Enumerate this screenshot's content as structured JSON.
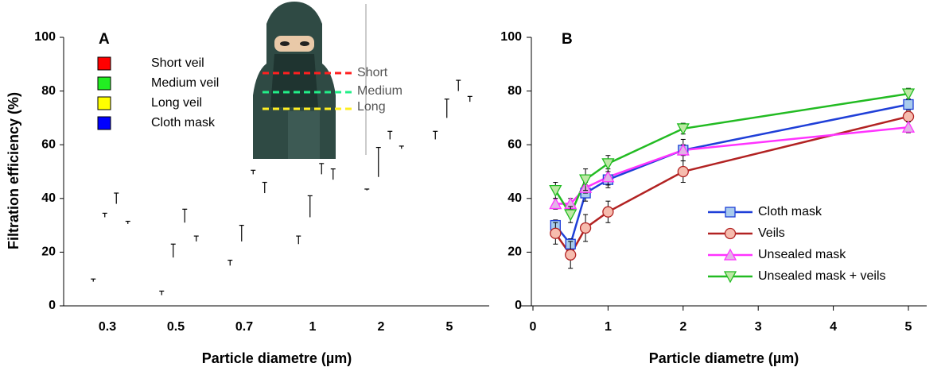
{
  "chart_data": [
    {
      "type": "bar",
      "title": "A",
      "x_label": "Particle diametre (µm)",
      "y_label": "Filtration efficiency (%)",
      "categories": [
        "0.3",
        "0.5",
        "0.7",
        "1",
        "2",
        "5"
      ],
      "series": [
        {
          "name": "Short veil",
          "color": "#ff0000",
          "values": [
            9,
            4,
            15,
            23,
            43,
            62
          ],
          "errors": [
            1,
            1.5,
            2,
            3,
            0.5,
            3
          ]
        },
        {
          "name": "Medium veil",
          "color": "#22ee22",
          "values": [
            33,
            18,
            24,
            33,
            48,
            70
          ],
          "errors": [
            1.5,
            5,
            6,
            8,
            11,
            7
          ]
        },
        {
          "name": "Long veil",
          "color": "#ffff00",
          "values": [
            38,
            31,
            49,
            49,
            62,
            80
          ],
          "errors": [
            4,
            5,
            1.5,
            4,
            3,
            4
          ]
        },
        {
          "name": "Cloth mask",
          "color": "#0000ff",
          "values": [
            30.5,
            24,
            42,
            47,
            58.5,
            76
          ],
          "errors": [
            1,
            2,
            4,
            4,
            1,
            2
          ]
        }
      ],
      "annotations": [
        "Short",
        "Medium",
        "Long"
      ],
      "ylim": [
        0,
        100
      ],
      "yticks": [
        0,
        20,
        40,
        60,
        80,
        100
      ]
    },
    {
      "type": "line",
      "title": "B",
      "x_label": "Particle diametre (µm)",
      "x": [
        0.3,
        0.5,
        0.7,
        1,
        2,
        5
      ],
      "series": [
        {
          "name": "Cloth mask",
          "color": "#1f3fd8",
          "marker": "square",
          "marker_fill": "#a9cbec",
          "values": [
            30,
            23,
            42,
            47,
            58,
            75
          ],
          "errors": [
            2,
            2,
            3,
            3,
            4,
            2
          ]
        },
        {
          "name": "Veils",
          "color": "#b22222",
          "marker": "circle",
          "marker_fill": "#f6bcae",
          "values": [
            27,
            19,
            29,
            35,
            50,
            70.5
          ],
          "errors": [
            4,
            5,
            5,
            4,
            4,
            2
          ]
        },
        {
          "name": "Unsealed mask",
          "color": "#ff33ff",
          "marker": "triangle",
          "marker_fill": "#e2b4e6",
          "values": [
            38,
            38,
            44,
            48,
            58,
            66.5
          ],
          "errors": [
            2,
            2,
            2,
            3,
            2,
            2
          ]
        },
        {
          "name": "Unsealed mask + veils",
          "color": "#22bb22",
          "marker": "triangle-down",
          "marker_fill": "#bde8a4",
          "values": [
            43,
            34,
            47,
            53,
            66,
            79
          ],
          "errors": [
            3,
            3,
            4,
            3,
            2,
            2
          ]
        }
      ],
      "xlim": [
        0,
        5
      ],
      "xticks": [
        0,
        1,
        2,
        3,
        4,
        5
      ],
      "ylim": [
        0,
        100
      ],
      "yticks": [
        0,
        20,
        40,
        60,
        80,
        100
      ]
    }
  ]
}
